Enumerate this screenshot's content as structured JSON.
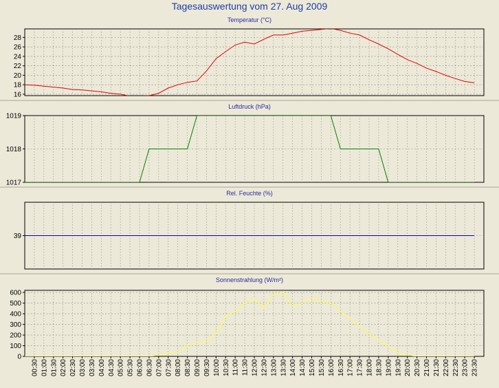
{
  "title": "Tagesauswertung vom 27. Aug 2009",
  "time_labels": [
    "00:30",
    "01:00",
    "01:30",
    "02:00",
    "02:30",
    "03:00",
    "03:30",
    "04:00",
    "04:30",
    "05:00",
    "05:30",
    "06:00",
    "06:30",
    "07:00",
    "07:30",
    "08:00",
    "08:30",
    "09:00",
    "09:30",
    "10:00",
    "10:30",
    "11:00",
    "11:30",
    "12:00",
    "12:30",
    "13:00",
    "13:30",
    "14:00",
    "14:30",
    "15:00",
    "15:30",
    "16:00",
    "16:30",
    "17:00",
    "17:30",
    "18:00",
    "18:30",
    "19:00",
    "19:30",
    "20:00",
    "20:30",
    "21:00",
    "21:30",
    "22:00",
    "22:30",
    "23:00",
    "23:30"
  ],
  "colors": {
    "background": "#ece9d8",
    "grid": "#8a8a8a",
    "temperature": "#e00000",
    "pressure": "#008000",
    "humidity": "#0000cc",
    "radiation": "#ffff40",
    "title": "#1d3ca8",
    "panel_title": "#2a2aa0"
  },
  "chart_data": [
    {
      "type": "line",
      "title": "Temperatur (°C)",
      "ylim": [
        15.7,
        29.8
      ],
      "yticks": [
        16,
        18,
        20,
        22,
        24,
        26,
        28
      ],
      "grid": true,
      "series": [
        {
          "values": [
            18.0,
            17.9,
            17.7,
            17.5,
            17.3,
            17.0,
            16.9,
            16.7,
            16.5,
            16.2,
            16.0,
            15.6,
            15.6,
            15.7,
            16.2,
            17.3,
            18.0,
            18.5,
            18.8,
            20.9,
            23.5,
            25.0,
            26.4,
            27.0,
            26.6,
            27.6,
            28.5,
            28.5,
            28.9,
            29.3,
            29.5,
            29.7,
            29.9,
            29.5,
            28.9,
            28.5,
            27.5,
            26.6,
            25.6,
            24.4,
            23.3,
            22.5,
            21.5,
            20.8,
            20.0,
            19.3,
            18.7,
            18.4
          ]
        }
      ]
    },
    {
      "type": "line",
      "title": "Luftdruck (hPa)",
      "ylim": [
        1017,
        1019
      ],
      "yticks": [
        1017,
        1018,
        1019
      ],
      "grid": true,
      "series": [
        {
          "values": [
            1017,
            1017,
            1017,
            1017,
            1017,
            1017,
            1017,
            1017,
            1017,
            1017,
            1017,
            1017,
            1017,
            1018,
            1018,
            1018,
            1018,
            1018,
            1019,
            1019,
            1019,
            1019,
            1019,
            1019,
            1019,
            1019,
            1019,
            1019,
            1019,
            1019,
            1019,
            1019,
            1019,
            1018,
            1018,
            1018,
            1018,
            1018,
            1017,
            1017,
            1017,
            1017,
            1017,
            1017,
            1017,
            1017,
            1017,
            1017
          ]
        }
      ]
    },
    {
      "type": "line",
      "title": "Rel. Feuchte (%)",
      "ylim": [
        38,
        40
      ],
      "yticks": [
        39
      ],
      "grid": true,
      "series": [
        {
          "values": [
            39,
            39,
            39,
            39,
            39,
            39,
            39,
            39,
            39,
            39,
            39,
            39,
            39,
            39,
            39,
            39,
            39,
            39,
            39,
            39,
            39,
            39,
            39,
            39,
            39,
            39,
            39,
            39,
            39,
            39,
            39,
            39,
            39,
            39,
            39,
            39,
            39,
            39,
            39,
            39,
            39,
            39,
            39,
            39,
            39,
            39,
            39,
            39
          ]
        }
      ]
    },
    {
      "type": "line",
      "title": "Sonnenstrahlung (W/m²)",
      "ylim": [
        0,
        620
      ],
      "yticks": [
        0,
        100,
        200,
        300,
        400,
        500,
        600
      ],
      "grid": true,
      "series": [
        {
          "values": [
            0,
            0,
            0,
            0,
            0,
            0,
            0,
            0,
            0,
            0,
            0,
            0,
            0,
            0,
            10,
            30,
            40,
            100,
            130,
            140,
            220,
            380,
            420,
            500,
            540,
            460,
            580,
            600,
            470,
            500,
            550,
            520,
            500,
            420,
            360,
            280,
            210,
            150,
            100,
            40,
            10,
            0,
            0,
            0,
            0,
            0,
            0,
            0
          ]
        }
      ]
    }
  ]
}
